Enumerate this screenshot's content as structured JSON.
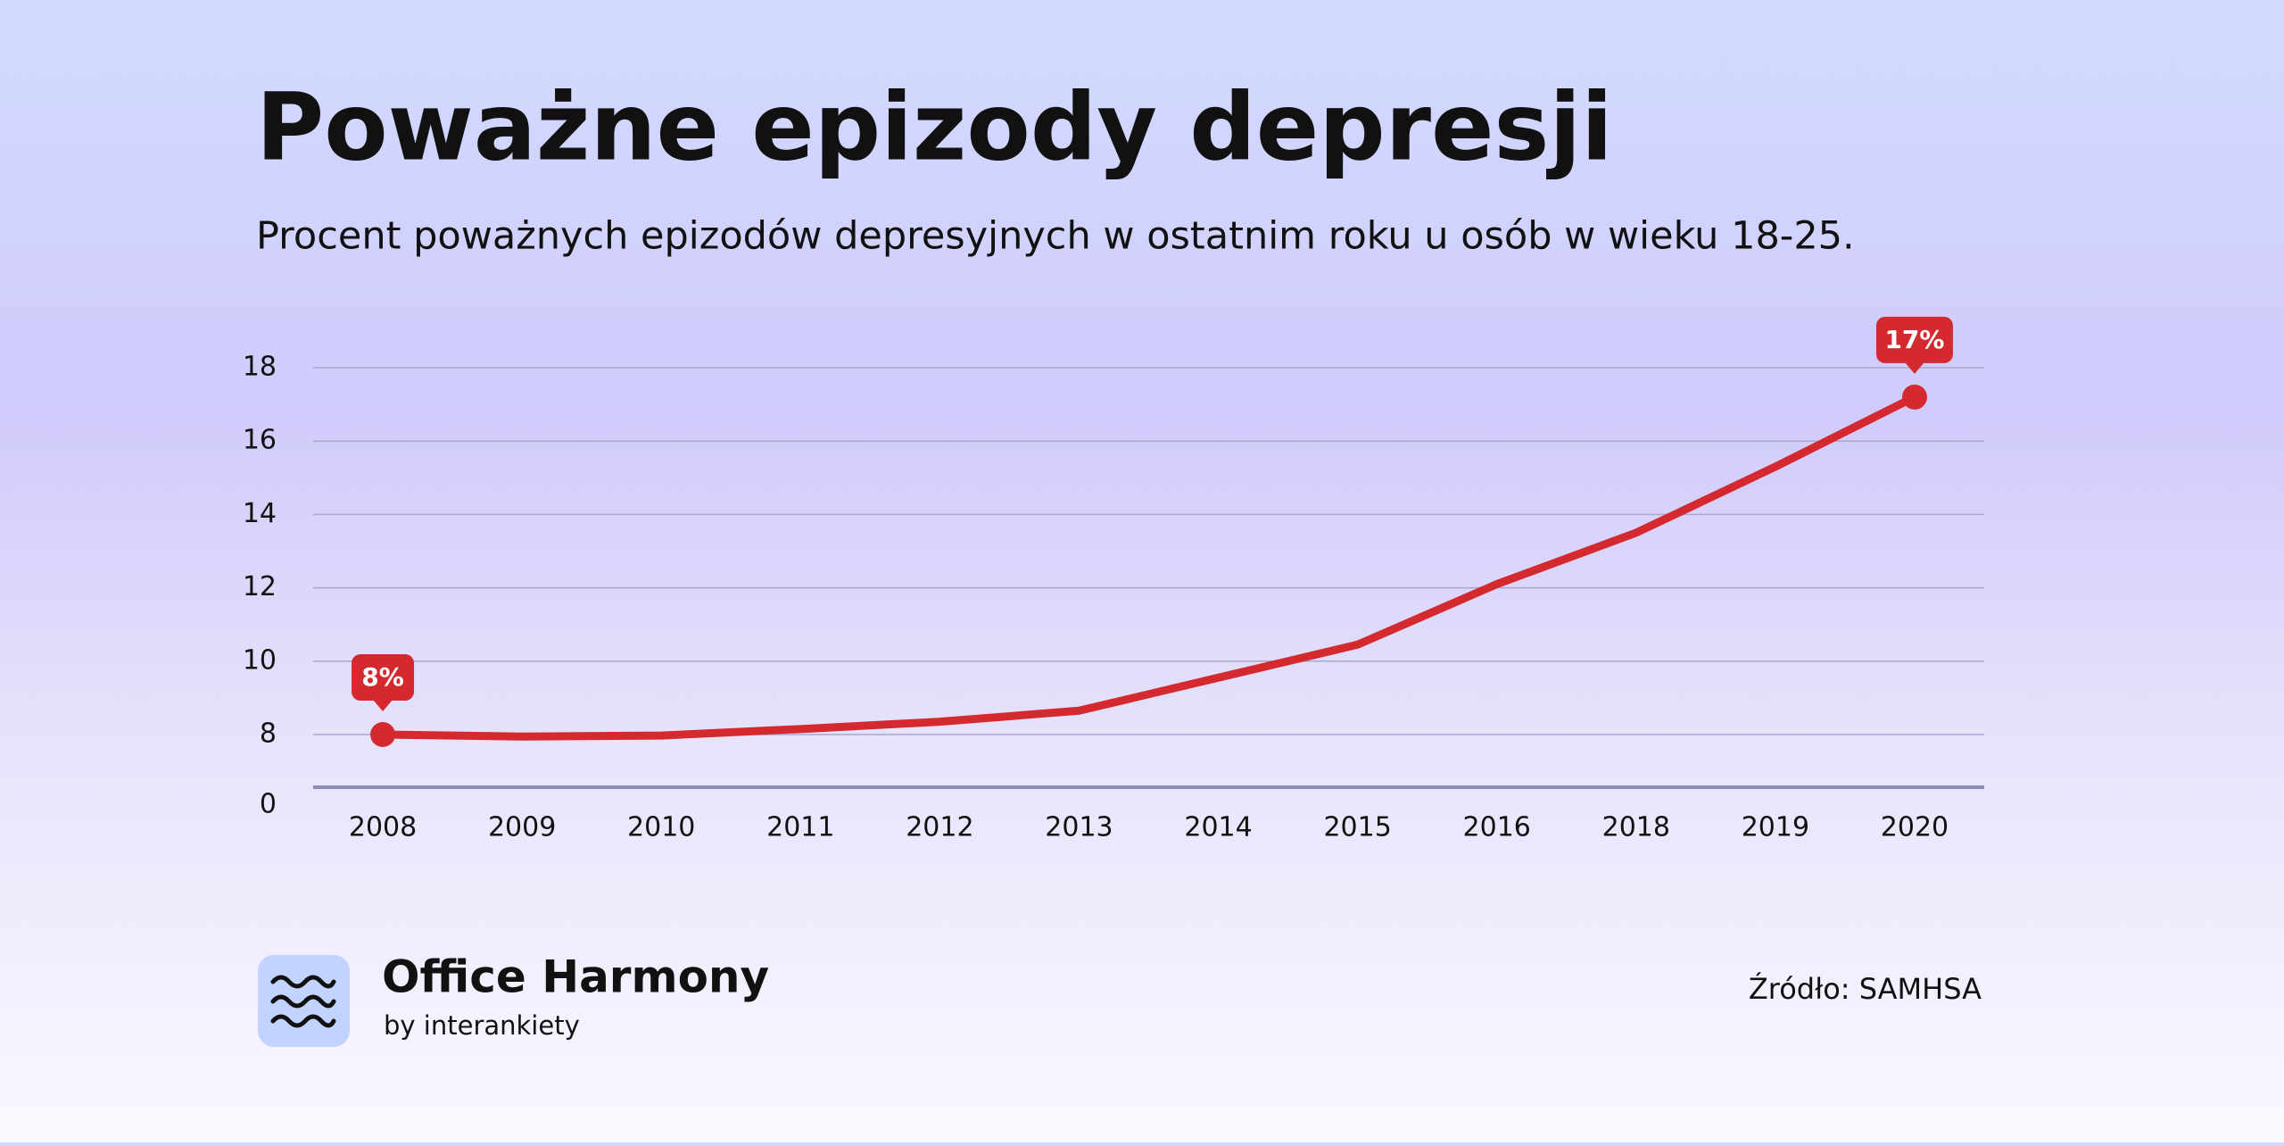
{
  "chart_data": {
    "type": "line",
    "title": "Poważne epizody depresji",
    "subtitle": "Procent poważnych epizodów depresyjnych w ostatnim roku u osób w wieku 18-25.",
    "categories": [
      "2008",
      "2009",
      "2010",
      "2011",
      "2012",
      "2013",
      "2014",
      "2015",
      "2016",
      "2018",
      "2019",
      "2020"
    ],
    "values": [
      8,
      7.7,
      7.85,
      8.15,
      8.35,
      8.65,
      9.55,
      10.45,
      12.1,
      13.5,
      15.3,
      17.2
    ],
    "value_labels": [
      "8%",
      null,
      null,
      null,
      null,
      null,
      null,
      null,
      null,
      null,
      null,
      "17%"
    ],
    "color": "#d42a2f",
    "ylim": [
      0,
      18
    ],
    "y_break": [
      0,
      8
    ],
    "yticks": [
      0,
      8,
      10,
      12,
      14,
      16,
      18
    ],
    "grid": true
  },
  "footer": {
    "brand": "Office Harmony",
    "byline": "by interankiety",
    "source": "Źródło: SAMHSA"
  }
}
